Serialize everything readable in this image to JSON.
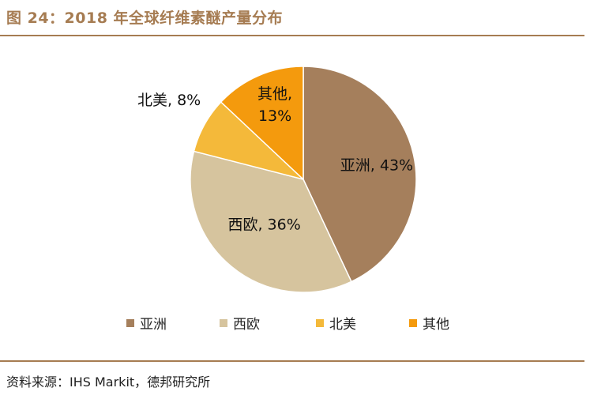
{
  "title": "图 24：2018 年全球纤维素醚产量分布",
  "source": "资料来源：IHS Markit，德邦研究所",
  "colors": {
    "accent": "#a67c52",
    "series": [
      "#a57f5c",
      "#d6c49e",
      "#f4b93a",
      "#f49a0d"
    ]
  },
  "chart_data": {
    "type": "pie",
    "title": "",
    "slices": [
      {
        "label": "亚洲",
        "value": 43,
        "data_label": "亚洲, 43%"
      },
      {
        "label": "西欧",
        "value": 36,
        "data_label": "西欧, 36%"
      },
      {
        "label": "北美",
        "value": 8,
        "data_label": "北美, 8%"
      },
      {
        "label": "其他",
        "value": 13,
        "data_label_line1": "其他,",
        "data_label_line2": "13%"
      }
    ],
    "legend": [
      "亚洲",
      "西欧",
      "北美",
      "其他"
    ],
    "legend_placement": "bottom"
  }
}
